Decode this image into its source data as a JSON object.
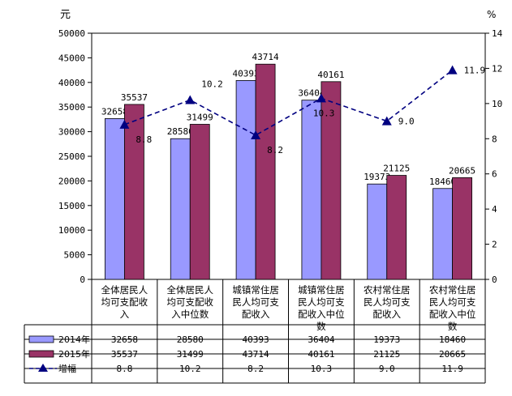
{
  "chart_data": {
    "type": "bar",
    "left_unit": "元",
    "right_unit": "%",
    "categories": [
      "全体居民人均可支配收入",
      "全体居民人均可支配收入中位数",
      "城镇常住居民人均可支配收入",
      "城镇常住居民人均可支配收入中位数",
      "农村常住居民人均可支配收入",
      "农村常住居民人均可支配收入中位数"
    ],
    "category_lines": [
      [
        "全体居民人",
        "均可支配收",
        "入"
      ],
      [
        "全体居民人",
        "均可支配收",
        "入中位数"
      ],
      [
        "城镇常住居",
        "民人均可支",
        "配收入"
      ],
      [
        "城镇常住居",
        "民人均可支",
        "配收入中位",
        "数"
      ],
      [
        "农村常住居",
        "民人均可支",
        "配收入"
      ],
      [
        "农村常住居",
        "民人均可支",
        "配收入中位",
        "数"
      ]
    ],
    "series": [
      {
        "name": "2014年",
        "axis": "left",
        "kind": "bar",
        "color": "#9999ff",
        "values": [
          32658,
          28580,
          40393,
          36404,
          19373,
          18460
        ]
      },
      {
        "name": "2015年",
        "axis": "left",
        "kind": "bar",
        "color": "#993366",
        "values": [
          35537,
          31499,
          43714,
          40161,
          21125,
          20665
        ]
      },
      {
        "name": "增幅",
        "axis": "right",
        "kind": "line",
        "color": "#000080",
        "values": [
          8.8,
          10.2,
          8.2,
          10.3,
          9.0,
          11.9
        ]
      }
    ],
    "left_ylim": [
      0,
      50000
    ],
    "left_ticks": [
      0,
      5000,
      10000,
      15000,
      20000,
      25000,
      30000,
      35000,
      40000,
      45000,
      50000
    ],
    "right_ylim": [
      0,
      14
    ],
    "right_ticks": [
      0,
      2,
      4,
      6,
      8,
      10,
      12,
      14
    ],
    "growth_labels": [
      "8.8",
      "10.2",
      "8.2",
      "10.3",
      "9.0",
      "11.9"
    ],
    "grid": false,
    "legend": "data-table"
  }
}
